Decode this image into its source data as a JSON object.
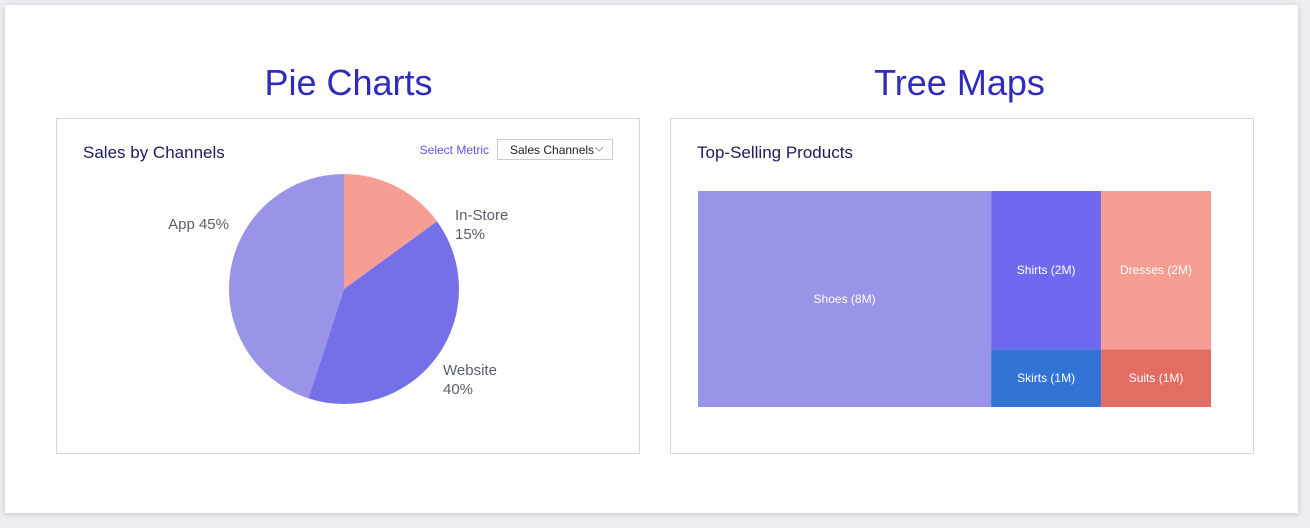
{
  "sections": {
    "pie_title": "Pie Charts",
    "treemap_title": "Tree Maps"
  },
  "pie_panel": {
    "title": "Sales by Channels",
    "select_label": "Select Metric",
    "select_value": "Sales Channels"
  },
  "treemap_panel": {
    "title": "Top-Selling Products"
  },
  "chart_data": [
    {
      "type": "pie",
      "title": "Sales by Channels",
      "slices": [
        {
          "name": "In-Store",
          "label_line1": "In-Store",
          "label_line2": "15%",
          "value": 15,
          "color": "#f79e94"
        },
        {
          "name": "Website",
          "label_line1": "Website",
          "label_line2": "40%",
          "value": 40,
          "color": "#7570e8"
        },
        {
          "name": "App",
          "label_line1": "App 45%",
          "label_line2": "",
          "value": 45,
          "color": "#9994e8"
        }
      ]
    },
    {
      "type": "treemap",
      "title": "Top-Selling Products",
      "items": [
        {
          "name": "Shoes",
          "label": "Shoes (8M)",
          "value": 8,
          "color": "#9994e8"
        },
        {
          "name": "Shirts",
          "label": "Shirts (2M)",
          "value": 2,
          "color": "#6f69f0"
        },
        {
          "name": "Dresses",
          "label": "Dresses (2M)",
          "value": 2,
          "color": "#f79e94"
        },
        {
          "name": "Skirts",
          "label": "Skirts (1M)",
          "value": 1,
          "color": "#3274d6"
        },
        {
          "name": "Suits",
          "label": "Suits (1M)",
          "value": 1,
          "color": "#e36d63"
        }
      ]
    }
  ]
}
